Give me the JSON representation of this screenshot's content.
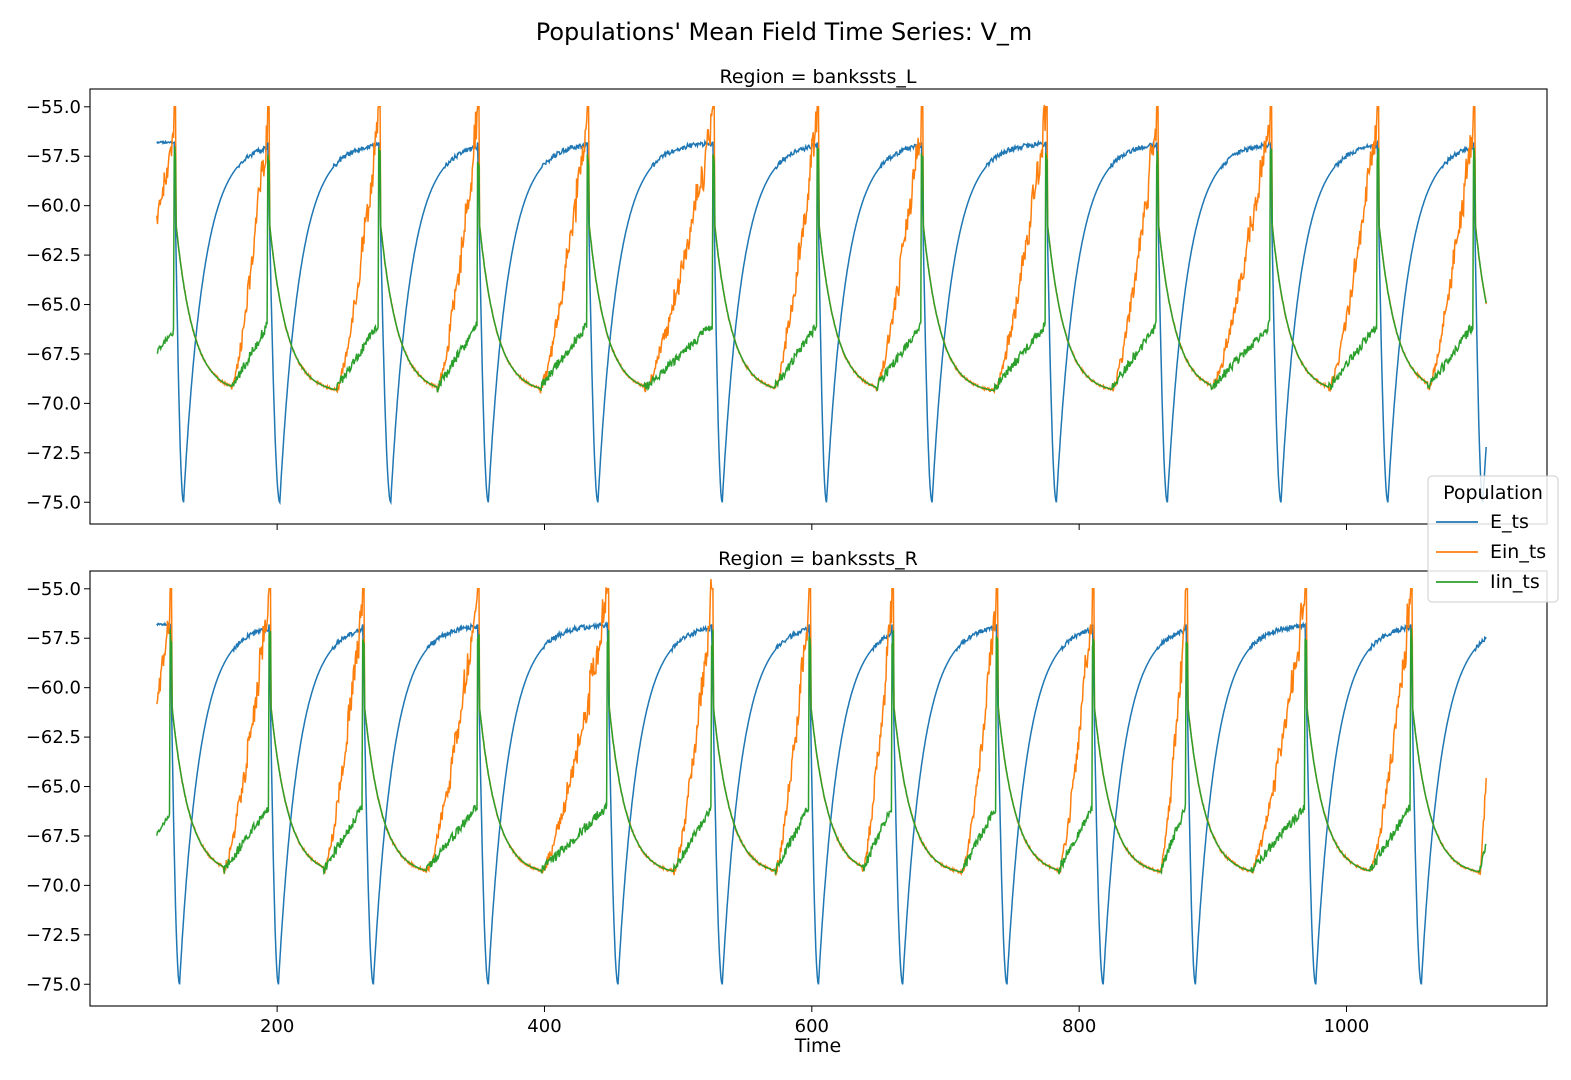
{
  "figure": {
    "title": "Populations' Mean Field Time Series: V_m",
    "xlabel": "Time"
  },
  "legend": {
    "title": "Population",
    "placement": "right, between panels",
    "entries": [
      {
        "label": "E_ts",
        "color": "#1f77b4"
      },
      {
        "label": "Ein_ts",
        "color": "#ff7f0e"
      },
      {
        "label": "Iin_ts",
        "color": "#2ca02c"
      }
    ]
  },
  "chart_data": [
    {
      "type": "line",
      "title": "Region = bankssts_L",
      "xlim": [
        60,
        1150
      ],
      "ylim": [
        -76.1,
        -54.1
      ],
      "xticks": [
        200,
        400,
        600,
        800,
        1000
      ],
      "xtick_labels": [
        "",
        "",
        "",
        "",
        ""
      ],
      "yticks": [
        -55.0,
        -57.5,
        -60.0,
        -62.5,
        -65.0,
        -67.5,
        -70.0,
        -72.5,
        -75.0
      ],
      "ytick_labels": [
        "−55.0",
        "−57.5",
        "−60.0",
        "−62.5",
        "−65.0",
        "−67.5",
        "−70.0",
        "−72.5",
        "−75.0"
      ],
      "grid": false,
      "x_start": 110,
      "x_end": 1105,
      "cycles": [
        {
          "start": 110,
          "spike": 123,
          "e_min": 130,
          "i_trough": 166
        },
        {
          "start": 166,
          "spike": 193,
          "e_min": 202,
          "i_trough": 245
        },
        {
          "start": 245,
          "spike": 276,
          "e_min": 285,
          "i_trough": 320
        },
        {
          "start": 320,
          "spike": 350,
          "e_min": 358,
          "i_trough": 397
        },
        {
          "start": 397,
          "spike": 432,
          "e_min": 440,
          "i_trough": 475
        },
        {
          "start": 475,
          "spike": 526,
          "e_min": 533,
          "i_trough": 572
        },
        {
          "start": 572,
          "spike": 604,
          "e_min": 611,
          "i_trough": 648
        },
        {
          "start": 648,
          "spike": 682,
          "e_min": 690,
          "i_trough": 737
        },
        {
          "start": 737,
          "spike": 775,
          "e_min": 783,
          "i_trough": 825
        },
        {
          "start": 825,
          "spike": 858,
          "e_min": 866,
          "i_trough": 899
        },
        {
          "start": 899,
          "spike": 943,
          "e_min": 951,
          "i_trough": 987
        },
        {
          "start": 987,
          "spike": 1023,
          "e_min": 1031,
          "i_trough": 1061
        },
        {
          "start": 1061,
          "spike": 1095,
          "e_min": 1102,
          "i_trough": 1105
        }
      ],
      "series": [
        {
          "name": "E_ts",
          "color": "#1f77b4",
          "baseline": -56.8,
          "min": -75.0
        },
        {
          "name": "Ein_ts",
          "color": "#ff7f0e",
          "range": [
            -69.5,
            -55.0
          ]
        },
        {
          "name": "Iin_ts",
          "color": "#2ca02c",
          "range": [
            -69.5,
            -55.0
          ],
          "post_spike": -60.0
        }
      ]
    },
    {
      "type": "line",
      "title": "Region = bankssts_R",
      "xlim": [
        60,
        1150
      ],
      "ylim": [
        -76.1,
        -54.1
      ],
      "xticks": [
        200,
        400,
        600,
        800,
        1000
      ],
      "xtick_labels": [
        "200",
        "400",
        "600",
        "800",
        "1000"
      ],
      "yticks": [
        -55.0,
        -57.5,
        -60.0,
        -62.5,
        -65.0,
        -67.5,
        -70.0,
        -72.5,
        -75.0
      ],
      "ytick_labels": [
        "−55.0",
        "−57.5",
        "−60.0",
        "−62.5",
        "−65.0",
        "−67.5",
        "−70.0",
        "−72.5",
        "−75.0"
      ],
      "grid": false,
      "x_start": 110,
      "x_end": 1105,
      "cycles": [
        {
          "start": 110,
          "spike": 120,
          "e_min": 127,
          "i_trough": 160
        },
        {
          "start": 160,
          "spike": 194,
          "e_min": 201,
          "i_trough": 235
        },
        {
          "start": 235,
          "spike": 264,
          "e_min": 272,
          "i_trough": 312
        },
        {
          "start": 312,
          "spike": 350,
          "e_min": 358,
          "i_trough": 398
        },
        {
          "start": 398,
          "spike": 447,
          "e_min": 455,
          "i_trough": 497
        },
        {
          "start": 497,
          "spike": 525,
          "e_min": 533,
          "i_trough": 573
        },
        {
          "start": 573,
          "spike": 598,
          "e_min": 605,
          "i_trough": 638
        },
        {
          "start": 638,
          "spike": 660,
          "e_min": 668,
          "i_trough": 713
        },
        {
          "start": 713,
          "spike": 738,
          "e_min": 746,
          "i_trough": 785
        },
        {
          "start": 785,
          "spike": 810,
          "e_min": 818,
          "i_trough": 861
        },
        {
          "start": 861,
          "spike": 880,
          "e_min": 887,
          "i_trough": 929
        },
        {
          "start": 929,
          "spike": 969,
          "e_min": 977,
          "i_trough": 1018
        },
        {
          "start": 1018,
          "spike": 1048,
          "e_min": 1056,
          "i_trough": 1100
        },
        {
          "start": 1100,
          "spike": 1110,
          "e_min": 1118,
          "i_trough": 1120
        }
      ],
      "series": [
        {
          "name": "E_ts",
          "color": "#1f77b4",
          "baseline": -56.8,
          "min": -75.0
        },
        {
          "name": "Ein_ts",
          "color": "#ff7f0e",
          "range": [
            -69.5,
            -55.0
          ]
        },
        {
          "name": "Iin_ts",
          "color": "#2ca02c",
          "range": [
            -69.5,
            -55.0
          ],
          "post_spike": -60.0
        }
      ]
    }
  ]
}
